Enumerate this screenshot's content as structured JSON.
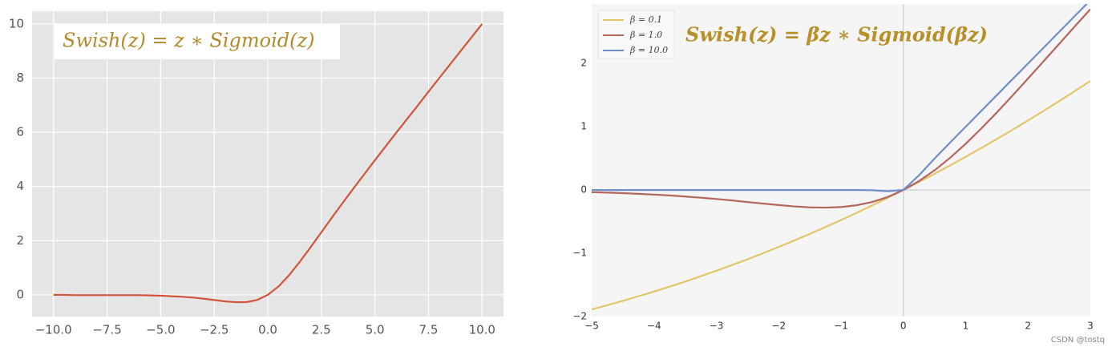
{
  "chart_data": [
    {
      "type": "line",
      "title": "Swish(z) = z ∗ Sigmoid(z)",
      "x": [
        -10,
        -9.5,
        -9,
        -8.5,
        -8,
        -7.5,
        -7,
        -6.5,
        -6,
        -5.5,
        -5,
        -4.5,
        -4,
        -3.5,
        -3,
        -2.5,
        -2,
        -1.5,
        -1,
        -0.5,
        0,
        0.5,
        1,
        1.5,
        2,
        2.5,
        3,
        3.5,
        4,
        4.5,
        5,
        5.5,
        6,
        6.5,
        7,
        7.5,
        8,
        8.5,
        9,
        9.5,
        10
      ],
      "values": [
        0,
        0,
        -0.01,
        -0.01,
        -0.01,
        -0.01,
        -0.01,
        -0.01,
        -0.01,
        -0.02,
        -0.03,
        -0.05,
        -0.07,
        -0.1,
        -0.14,
        -0.19,
        -0.24,
        -0.27,
        -0.27,
        -0.19,
        0,
        0.31,
        0.73,
        1.23,
        1.76,
        2.31,
        2.86,
        3.4,
        3.93,
        4.45,
        4.97,
        5.48,
        5.99,
        6.49,
        6.99,
        7.5,
        8.0,
        8.5,
        9.0,
        9.5,
        10.0
      ],
      "color": "#d0533a",
      "xlim": [
        -11,
        11
      ],
      "ylim": [
        -0.8,
        10.47
      ],
      "xticks": [
        {
          "value": -10,
          "label": "−10.0"
        },
        {
          "value": -7.5,
          "label": "−7.5"
        },
        {
          "value": -5,
          "label": "−5.0"
        },
        {
          "value": -2.5,
          "label": "−2.5"
        },
        {
          "value": 0,
          "label": "0.0"
        },
        {
          "value": 2.5,
          "label": "2.5"
        },
        {
          "value": 5,
          "label": "5.0"
        },
        {
          "value": 7.5,
          "label": "7.5"
        },
        {
          "value": 10,
          "label": "10.0"
        }
      ],
      "yticks": [
        0,
        2,
        4,
        6,
        8,
        10
      ],
      "grid": true
    },
    {
      "type": "line",
      "title": "Swish(z) = βz ∗ Sigmoid(βz)",
      "x": [
        -5,
        -4.75,
        -4.5,
        -4.25,
        -4,
        -3.75,
        -3.5,
        -3.25,
        -3,
        -2.75,
        -2.5,
        -2.25,
        -2,
        -1.75,
        -1.5,
        -1.25,
        -1,
        -0.75,
        -0.5,
        -0.25,
        0,
        0.25,
        0.5,
        0.75,
        1,
        1.25,
        1.5,
        1.75,
        2,
        2.25,
        2.5,
        2.75,
        3
      ],
      "series": [
        {
          "name": "β = 0.1",
          "color": "#e3c56b",
          "values": [
            -1.888,
            -1.821,
            -1.752,
            -1.68,
            -1.605,
            -1.527,
            -1.447,
            -1.363,
            -1.277,
            -1.187,
            -1.095,
            -0.999,
            -0.9,
            -0.799,
            -0.694,
            -0.586,
            -0.475,
            -0.361,
            -0.244,
            -0.123,
            0,
            0.127,
            0.256,
            0.389,
            0.525,
            0.664,
            0.806,
            0.951,
            1.1,
            1.251,
            1.405,
            1.563,
            1.723
          ]
        },
        {
          "name": "β = 1.0",
          "color": "#b5655c",
          "values": [
            -0.034,
            -0.041,
            -0.049,
            -0.06,
            -0.072,
            -0.086,
            -0.103,
            -0.121,
            -0.142,
            -0.165,
            -0.19,
            -0.215,
            -0.238,
            -0.259,
            -0.274,
            -0.278,
            -0.269,
            -0.241,
            -0.189,
            -0.11,
            0,
            0.141,
            0.311,
            0.509,
            0.731,
            0.972,
            1.226,
            1.491,
            1.762,
            2.036,
            2.31,
            2.585,
            2.858
          ]
        },
        {
          "name": "β = 10.0",
          "color": "#6f8ec7",
          "values": [
            0,
            0,
            0,
            0,
            0,
            0,
            0,
            0,
            0,
            0,
            0,
            0,
            0,
            0,
            0,
            0,
            0,
            0,
            -0.003,
            -0.019,
            0,
            0.231,
            0.497,
            0.75,
            1.0,
            1.25,
            1.5,
            1.75,
            2.0,
            2.25,
            2.5,
            2.75,
            3.0
          ]
        }
      ],
      "xlim": [
        -5,
        3
      ],
      "ylim": [
        -2,
        2.94
      ],
      "xticks": [
        {
          "value": -5,
          "label": "−5"
        },
        {
          "value": -4,
          "label": "−4"
        },
        {
          "value": -3,
          "label": "−3"
        },
        {
          "value": -2,
          "label": "−2"
        },
        {
          "value": -1,
          "label": "−1"
        },
        0,
        1,
        2,
        3
      ],
      "yticks": [
        {
          "value": -2,
          "label": "−2"
        },
        {
          "value": -1,
          "label": "−1"
        },
        0,
        1,
        2
      ],
      "grid": false,
      "zero_lines": true,
      "legend": "upper left"
    }
  ],
  "watermark": "CSDN @tostq"
}
